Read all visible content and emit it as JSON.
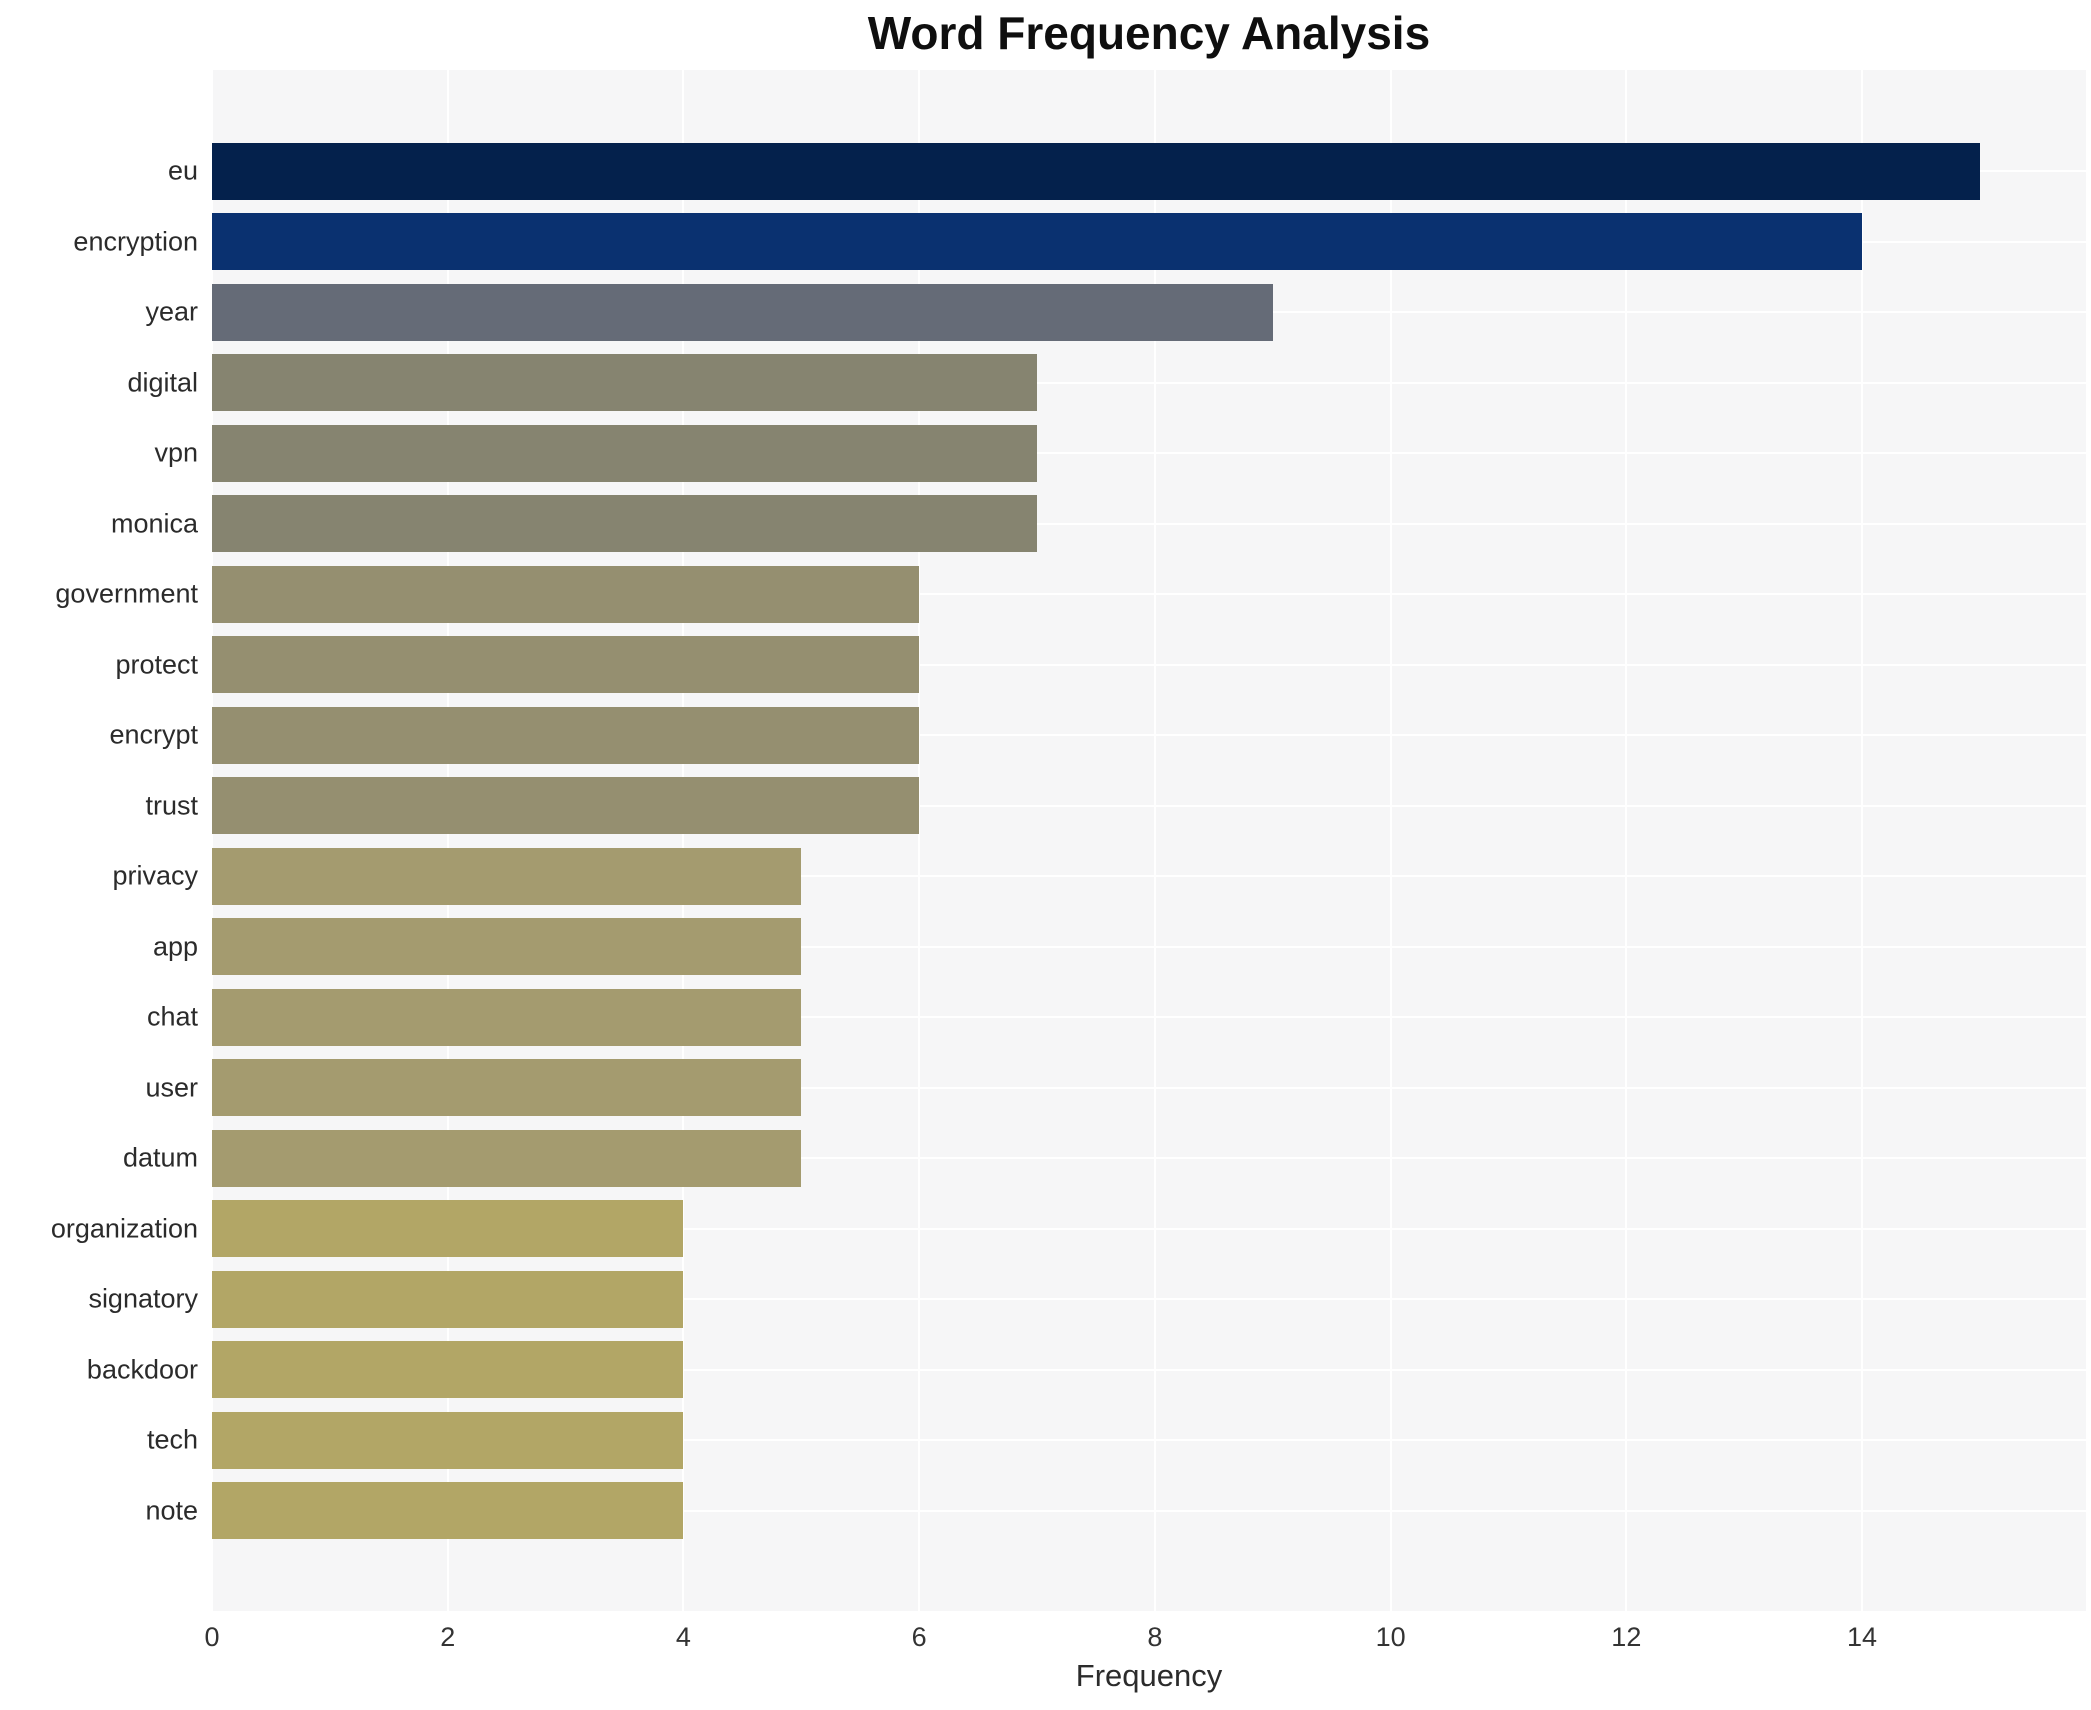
{
  "title": "Word Frequency Analysis",
  "chart_data": {
    "type": "bar",
    "orientation": "horizontal",
    "title": "Word Frequency Analysis",
    "xlabel": "Frequency",
    "ylabel": "",
    "categories": [
      "eu",
      "encryption",
      "year",
      "digital",
      "vpn",
      "monica",
      "government",
      "protect",
      "encrypt",
      "trust",
      "privacy",
      "app",
      "chat",
      "user",
      "datum",
      "organization",
      "signatory",
      "backdoor",
      "tech",
      "note"
    ],
    "values": [
      15,
      14,
      9,
      7,
      7,
      7,
      6,
      6,
      6,
      6,
      5,
      5,
      5,
      5,
      5,
      4,
      4,
      4,
      4,
      4
    ],
    "bar_colors": [
      "#04214c",
      "#0a3170",
      "#656b77",
      "#868470",
      "#868470",
      "#868470",
      "#958f70",
      "#958f70",
      "#958f70",
      "#958f70",
      "#a49b6f",
      "#a49b6f",
      "#a49b6f",
      "#a49b6f",
      "#a49b6f",
      "#b2a666",
      "#b2a666",
      "#b2a666",
      "#b2a666",
      "#b2a666"
    ],
    "xticks": [
      0,
      2,
      4,
      6,
      8,
      10,
      12,
      14
    ],
    "xlim": [
      0,
      15.9
    ],
    "grid": true,
    "legend_position": "none",
    "plot_background_color": "#f6f6f7",
    "gridline_color": "#ffffff",
    "title_color": "#0f0f0f",
    "axis_text_color": "#2b2b2b"
  }
}
